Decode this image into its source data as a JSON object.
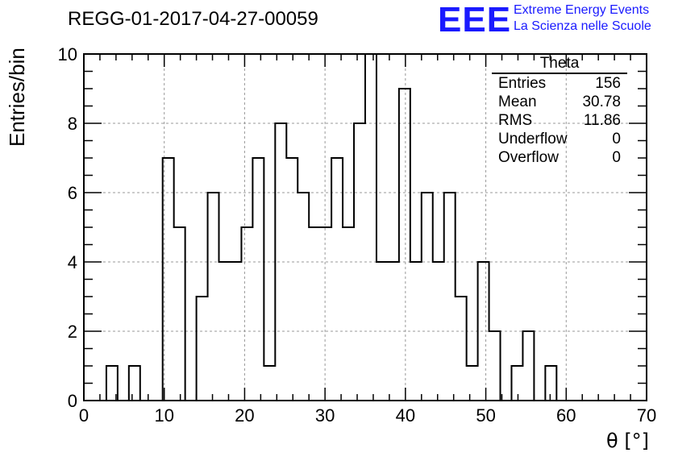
{
  "header": {
    "title": "REGG-01-2017-04-27-00059",
    "logo": "EEE",
    "brand_line1": "Extreme Energy Events",
    "brand_line2": "La Scienza nelle Scuole",
    "brand_color": "#1a1aff"
  },
  "stats": {
    "title": "Theta",
    "rows": [
      {
        "label": "Entries",
        "value": "156"
      },
      {
        "label": "Mean",
        "value": "30.78"
      },
      {
        "label": "RMS",
        "value": "11.86"
      },
      {
        "label": "Underflow",
        "value": "0"
      },
      {
        "label": "Overflow",
        "value": "0"
      }
    ]
  },
  "chart_data": {
    "type": "bar",
    "histogram": true,
    "bin_width": 1.4,
    "bin_start": 0,
    "bin_count": 50,
    "values": [
      0,
      0,
      1,
      0,
      1,
      0,
      0,
      7,
      5,
      0,
      3,
      6,
      4,
      4,
      5,
      7,
      1,
      8,
      7,
      6,
      5,
      5,
      7,
      5,
      8,
      10,
      4,
      4,
      9,
      4,
      6,
      4,
      6,
      3,
      1,
      4,
      2,
      0,
      1,
      2,
      0,
      1,
      0,
      0,
      0,
      0,
      0,
      0,
      0,
      0
    ],
    "xlabel": "θ [°]",
    "ylabel": "Entries/bin",
    "xlim": [
      0,
      70
    ],
    "ylim": [
      0,
      10
    ],
    "x_ticks": [
      "0",
      "10",
      "20",
      "30",
      "40",
      "50",
      "60",
      "70"
    ],
    "y_ticks": [
      "0",
      "2",
      "4",
      "6",
      "8",
      "10"
    ],
    "grid": true
  }
}
